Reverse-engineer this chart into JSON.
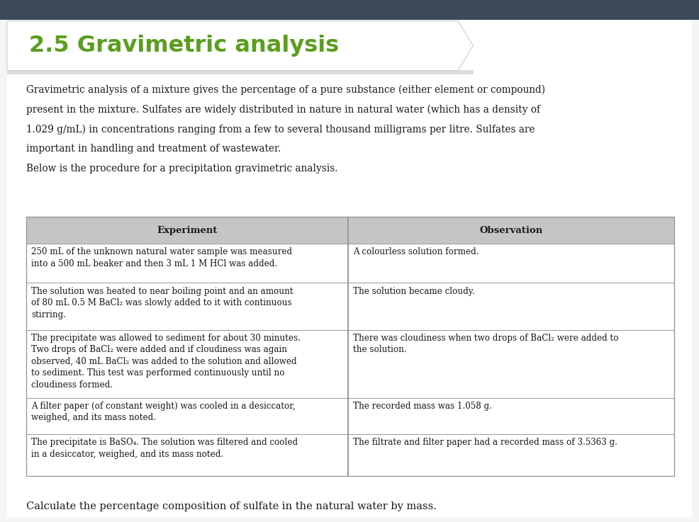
{
  "title": "2.5 Gravimetric analysis",
  "title_color": "#5b9e1f",
  "top_bar_color": "#3d4a5c",
  "banner_bg": "#ffffff",
  "banner_edge": "#cccccc",
  "intro_lines": [
    "Gravimetric analysis of a mixture gives the percentage of a pure substance (either element or compound)",
    "present in the mixture. Sulfates are widely distributed in nature in natural water (which has a density of",
    "1.029 g/mL) in concentrations ranging from a few to several thousand milligrams per litre. Sulfates are",
    "important in handling and treatment of wastewater.",
    "Below is the procedure for a precipitation gravimetric analysis."
  ],
  "table_header_bg": "#c5c5c5",
  "table_header_text": [
    "Experiment",
    "Observation"
  ],
  "table_rows": [
    [
      "250 mL of the unknown natural water sample was measured\ninto a 500 mL beaker and then 3 mL 1 M HCl was added.",
      "A colourless solution formed."
    ],
    [
      "The solution was heated to near boiling point and an amount\nof 80 mL 0.5 M BaCl₂ was slowly added to it with continuous\nstirring.",
      "The solution became cloudy."
    ],
    [
      "The precipitate was allowed to sediment for about 30 minutes.\nTwo drops of BaCl₂ were added and if cloudiness was again\nobserved, 40 mL BaCl₂ was added to the solution and allowed\nto sediment. This test was performed continuously until no\ncloudiness formed.",
      "There was cloudiness when two drops of BaCl₂ were added to\nthe solution."
    ],
    [
      "A filter paper (of constant weight) was cooled in a desiccator,\nweighed, and its mass noted.",
      "The recorded mass was 1.058 g."
    ],
    [
      "The precipitate is BaSO₄. The solution was filtered and cooled\nin a desiccator, weighed, and its mass noted.",
      "The filtrate and filter paper had a recorded mass of 3.5363 g."
    ]
  ],
  "footer_text": "Calculate the percentage composition of sulfate in the natural water by mass.",
  "bg_color": "#f5f5f5",
  "page_bg": "#ffffff",
  "border_color": "#999999",
  "text_color": "#1a1a1a"
}
